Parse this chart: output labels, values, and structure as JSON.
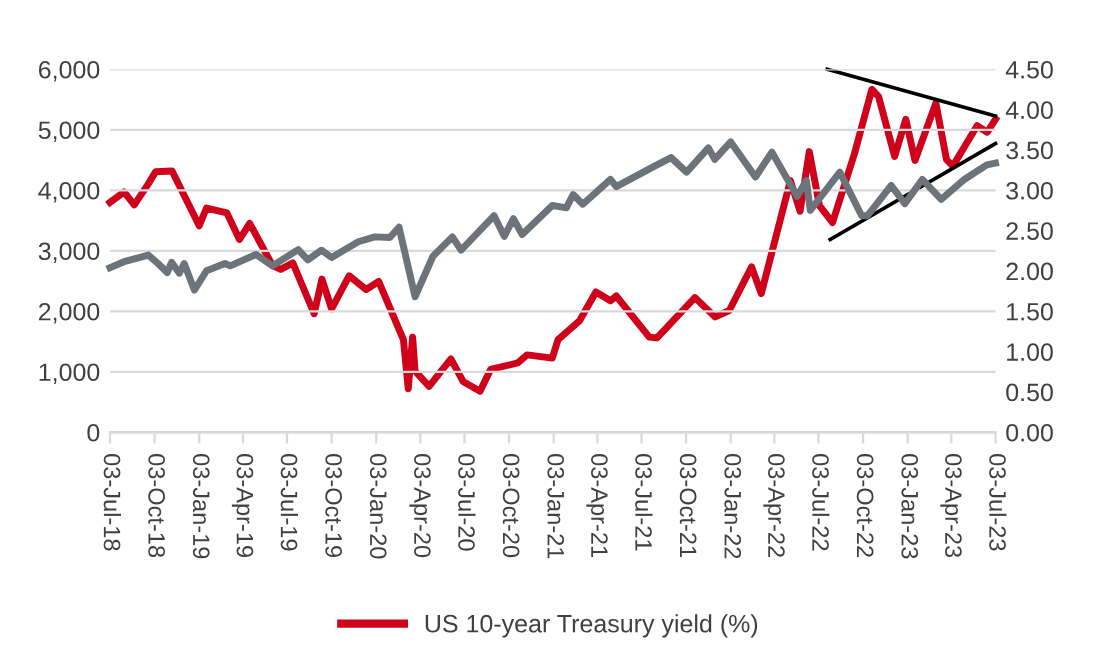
{
  "chart_data": {
    "type": "line",
    "xlim": [
      "2018-07-03",
      "2023-07-03"
    ],
    "xticks": [
      {
        "value": "2018-07-03",
        "label": "03-Jul-18"
      },
      {
        "value": "2018-10-03",
        "label": "03-Oct-18"
      },
      {
        "value": "2019-01-03",
        "label": "03-Jan-19"
      },
      {
        "value": "2019-04-03",
        "label": "03-Apr-19"
      },
      {
        "value": "2019-07-03",
        "label": "03-Jul-19"
      },
      {
        "value": "2019-10-03",
        "label": "03-Oct-19"
      },
      {
        "value": "2020-01-03",
        "label": "03-Jan-20"
      },
      {
        "value": "2020-04-03",
        "label": "03-Apr-20"
      },
      {
        "value": "2020-07-03",
        "label": "03-Jul-20"
      },
      {
        "value": "2020-10-03",
        "label": "03-Oct-20"
      },
      {
        "value": "2021-01-03",
        "label": "03-Jan-21"
      },
      {
        "value": "2021-04-03",
        "label": "03-Apr-21"
      },
      {
        "value": "2021-07-03",
        "label": "03-Jul-21"
      },
      {
        "value": "2021-10-03",
        "label": "03-Oct-21"
      },
      {
        "value": "2022-01-03",
        "label": "03-Jan-22"
      },
      {
        "value": "2022-04-03",
        "label": "03-Apr-22"
      },
      {
        "value": "2022-07-03",
        "label": "03-Jul-22"
      },
      {
        "value": "2022-10-03",
        "label": "03-Oct-22"
      },
      {
        "value": "2023-01-03",
        "label": "03-Jan-23"
      },
      {
        "value": "2023-04-03",
        "label": "03-Apr-23"
      },
      {
        "value": "2023-07-03",
        "label": "03-Jul-23"
      }
    ],
    "ylim": [
      0,
      6000
    ],
    "yticks": [
      0,
      {
        "value": 1000,
        "label": "1,000"
      },
      {
        "value": 2000,
        "label": "2,000"
      },
      {
        "value": 3000,
        "label": "3,000"
      },
      {
        "value": 4000,
        "label": "4,000"
      },
      {
        "value": 5000,
        "label": "5,000"
      },
      {
        "value": 6000,
        "label": "6,000"
      }
    ],
    "y2lim": [
      0,
      4.5
    ],
    "y2ticks": [
      {
        "value": 0,
        "label": "0.00"
      },
      {
        "value": 0.5,
        "label": "0.50"
      },
      {
        "value": 1,
        "label": "1.00"
      },
      {
        "value": 1.5,
        "label": "1.50"
      },
      {
        "value": 2,
        "label": "2.00"
      },
      {
        "value": 2.5,
        "label": "2.50"
      },
      {
        "value": 3,
        "label": "3.00"
      },
      {
        "value": 3.5,
        "label": "3.50"
      },
      {
        "value": 4,
        "label": "4.00"
      },
      {
        "value": 4.5,
        "label": "4.50"
      }
    ],
    "grid": "y",
    "legend": "bottom",
    "series": [
      {
        "color": "#6d737a",
        "x": [
          "2018-07-03",
          "2018-08-01",
          "2018-09-20",
          "2018-10-10",
          "2018-10-29",
          "2018-11-07",
          "2018-11-23",
          "2018-12-03",
          "2018-12-24",
          "2019-01-18",
          "2019-02-25",
          "2019-03-08",
          "2019-04-30",
          "2019-06-03",
          "2019-07-26",
          "2019-08-15",
          "2019-09-12",
          "2019-10-03",
          "2019-11-27",
          "2019-12-31",
          "2020-01-31",
          "2020-02-19",
          "2020-03-23",
          "2020-04-29",
          "2020-06-08",
          "2020-06-26",
          "2020-09-02",
          "2020-09-23",
          "2020-10-12",
          "2020-10-30",
          "2020-12-31",
          "2021-01-29",
          "2021-02-12",
          "2021-03-04",
          "2021-04-30",
          "2021-05-12",
          "2021-07-30",
          "2021-09-02",
          "2021-10-04",
          "2021-11-18",
          "2021-12-01",
          "2022-01-03",
          "2022-02-23",
          "2022-03-29",
          "2022-05-20",
          "2022-06-08",
          "2022-06-16",
          "2022-08-16",
          "2022-09-30",
          "2022-10-12",
          "2022-11-30",
          "2022-12-28",
          "2023-02-02",
          "2023-03-13",
          "2023-04-28",
          "2023-06-15",
          "2023-07-03"
        ],
        "values": [
          2720,
          2820,
          2930,
          2790,
          2640,
          2810,
          2630,
          2790,
          2350,
          2670,
          2790,
          2750,
          2940,
          2750,
          3020,
          2850,
          3010,
          2890,
          3150,
          3230,
          3220,
          3390,
          2240,
          2910,
          3230,
          3010,
          3580,
          3240,
          3530,
          3270,
          3750,
          3710,
          3930,
          3770,
          4180,
          4060,
          4400,
          4540,
          4300,
          4700,
          4510,
          4800,
          4220,
          4630,
          3900,
          4160,
          3670,
          4300,
          3580,
          3580,
          4080,
          3780,
          4180,
          3850,
          4170,
          4420,
          4450
        ]
      },
      {
        "name": "US 10-year Treasury yield (%)",
        "color": "#d0021b",
        "axis": "y2",
        "x": [
          "2018-07-03",
          "2018-08-01",
          "2018-08-22",
          "2018-09-20",
          "2018-10-05",
          "2018-11-08",
          "2018-12-05",
          "2019-01-03",
          "2019-01-18",
          "2019-03-01",
          "2019-03-27",
          "2019-04-17",
          "2019-06-03",
          "2019-06-20",
          "2019-07-15",
          "2019-08-28",
          "2019-09-13",
          "2019-10-03",
          "2019-11-08",
          "2019-12-13",
          "2020-01-08",
          "2020-02-28",
          "2020-03-09",
          "2020-03-18",
          "2020-03-23",
          "2020-04-21",
          "2020-06-05",
          "2020-06-30",
          "2020-08-04",
          "2020-08-26",
          "2020-10-21",
          "2020-11-09",
          "2020-12-31",
          "2021-01-12",
          "2021-02-25",
          "2021-03-31",
          "2021-04-30",
          "2021-05-12",
          "2021-07-19",
          "2021-08-04",
          "2021-10-21",
          "2021-12-02",
          "2021-12-31",
          "2022-02-15",
          "2022-03-07",
          "2022-05-06",
          "2022-05-26",
          "2022-06-14",
          "2022-07-05",
          "2022-08-01",
          "2022-09-15",
          "2022-10-21",
          "2022-11-04",
          "2022-12-07",
          "2022-12-30",
          "2023-01-18",
          "2023-03-02",
          "2023-03-24",
          "2023-04-06",
          "2023-05-26",
          "2023-06-16",
          "2023-07-03"
        ],
        "values": [
          2.85,
          2.98,
          2.82,
          3.08,
          3.23,
          3.24,
          2.91,
          2.56,
          2.78,
          2.72,
          2.39,
          2.59,
          2.07,
          2.02,
          2.1,
          1.47,
          1.9,
          1.53,
          1.94,
          1.77,
          1.87,
          1.15,
          0.54,
          1.18,
          0.76,
          0.57,
          0.91,
          0.63,
          0.51,
          0.78,
          0.86,
          0.96,
          0.92,
          1.15,
          1.38,
          1.74,
          1.63,
          1.69,
          1.18,
          1.17,
          1.67,
          1.43,
          1.51,
          2.05,
          1.72,
          3.12,
          2.74,
          3.48,
          2.81,
          2.6,
          3.45,
          4.25,
          4.16,
          3.42,
          3.88,
          3.37,
          4.08,
          3.38,
          3.3,
          3.8,
          3.72,
          3.88
        ]
      },
      {
        "color": "#000000",
        "axis": "y2",
        "x": [
          "2022-07-21",
          "2023-07-03"
        ],
        "values": [
          4.5,
          3.92
        ]
      },
      {
        "color": "#000000",
        "axis": "y2",
        "x": [
          "2022-07-27",
          "2023-07-03"
        ],
        "values": [
          2.39,
          3.58
        ]
      }
    ]
  }
}
